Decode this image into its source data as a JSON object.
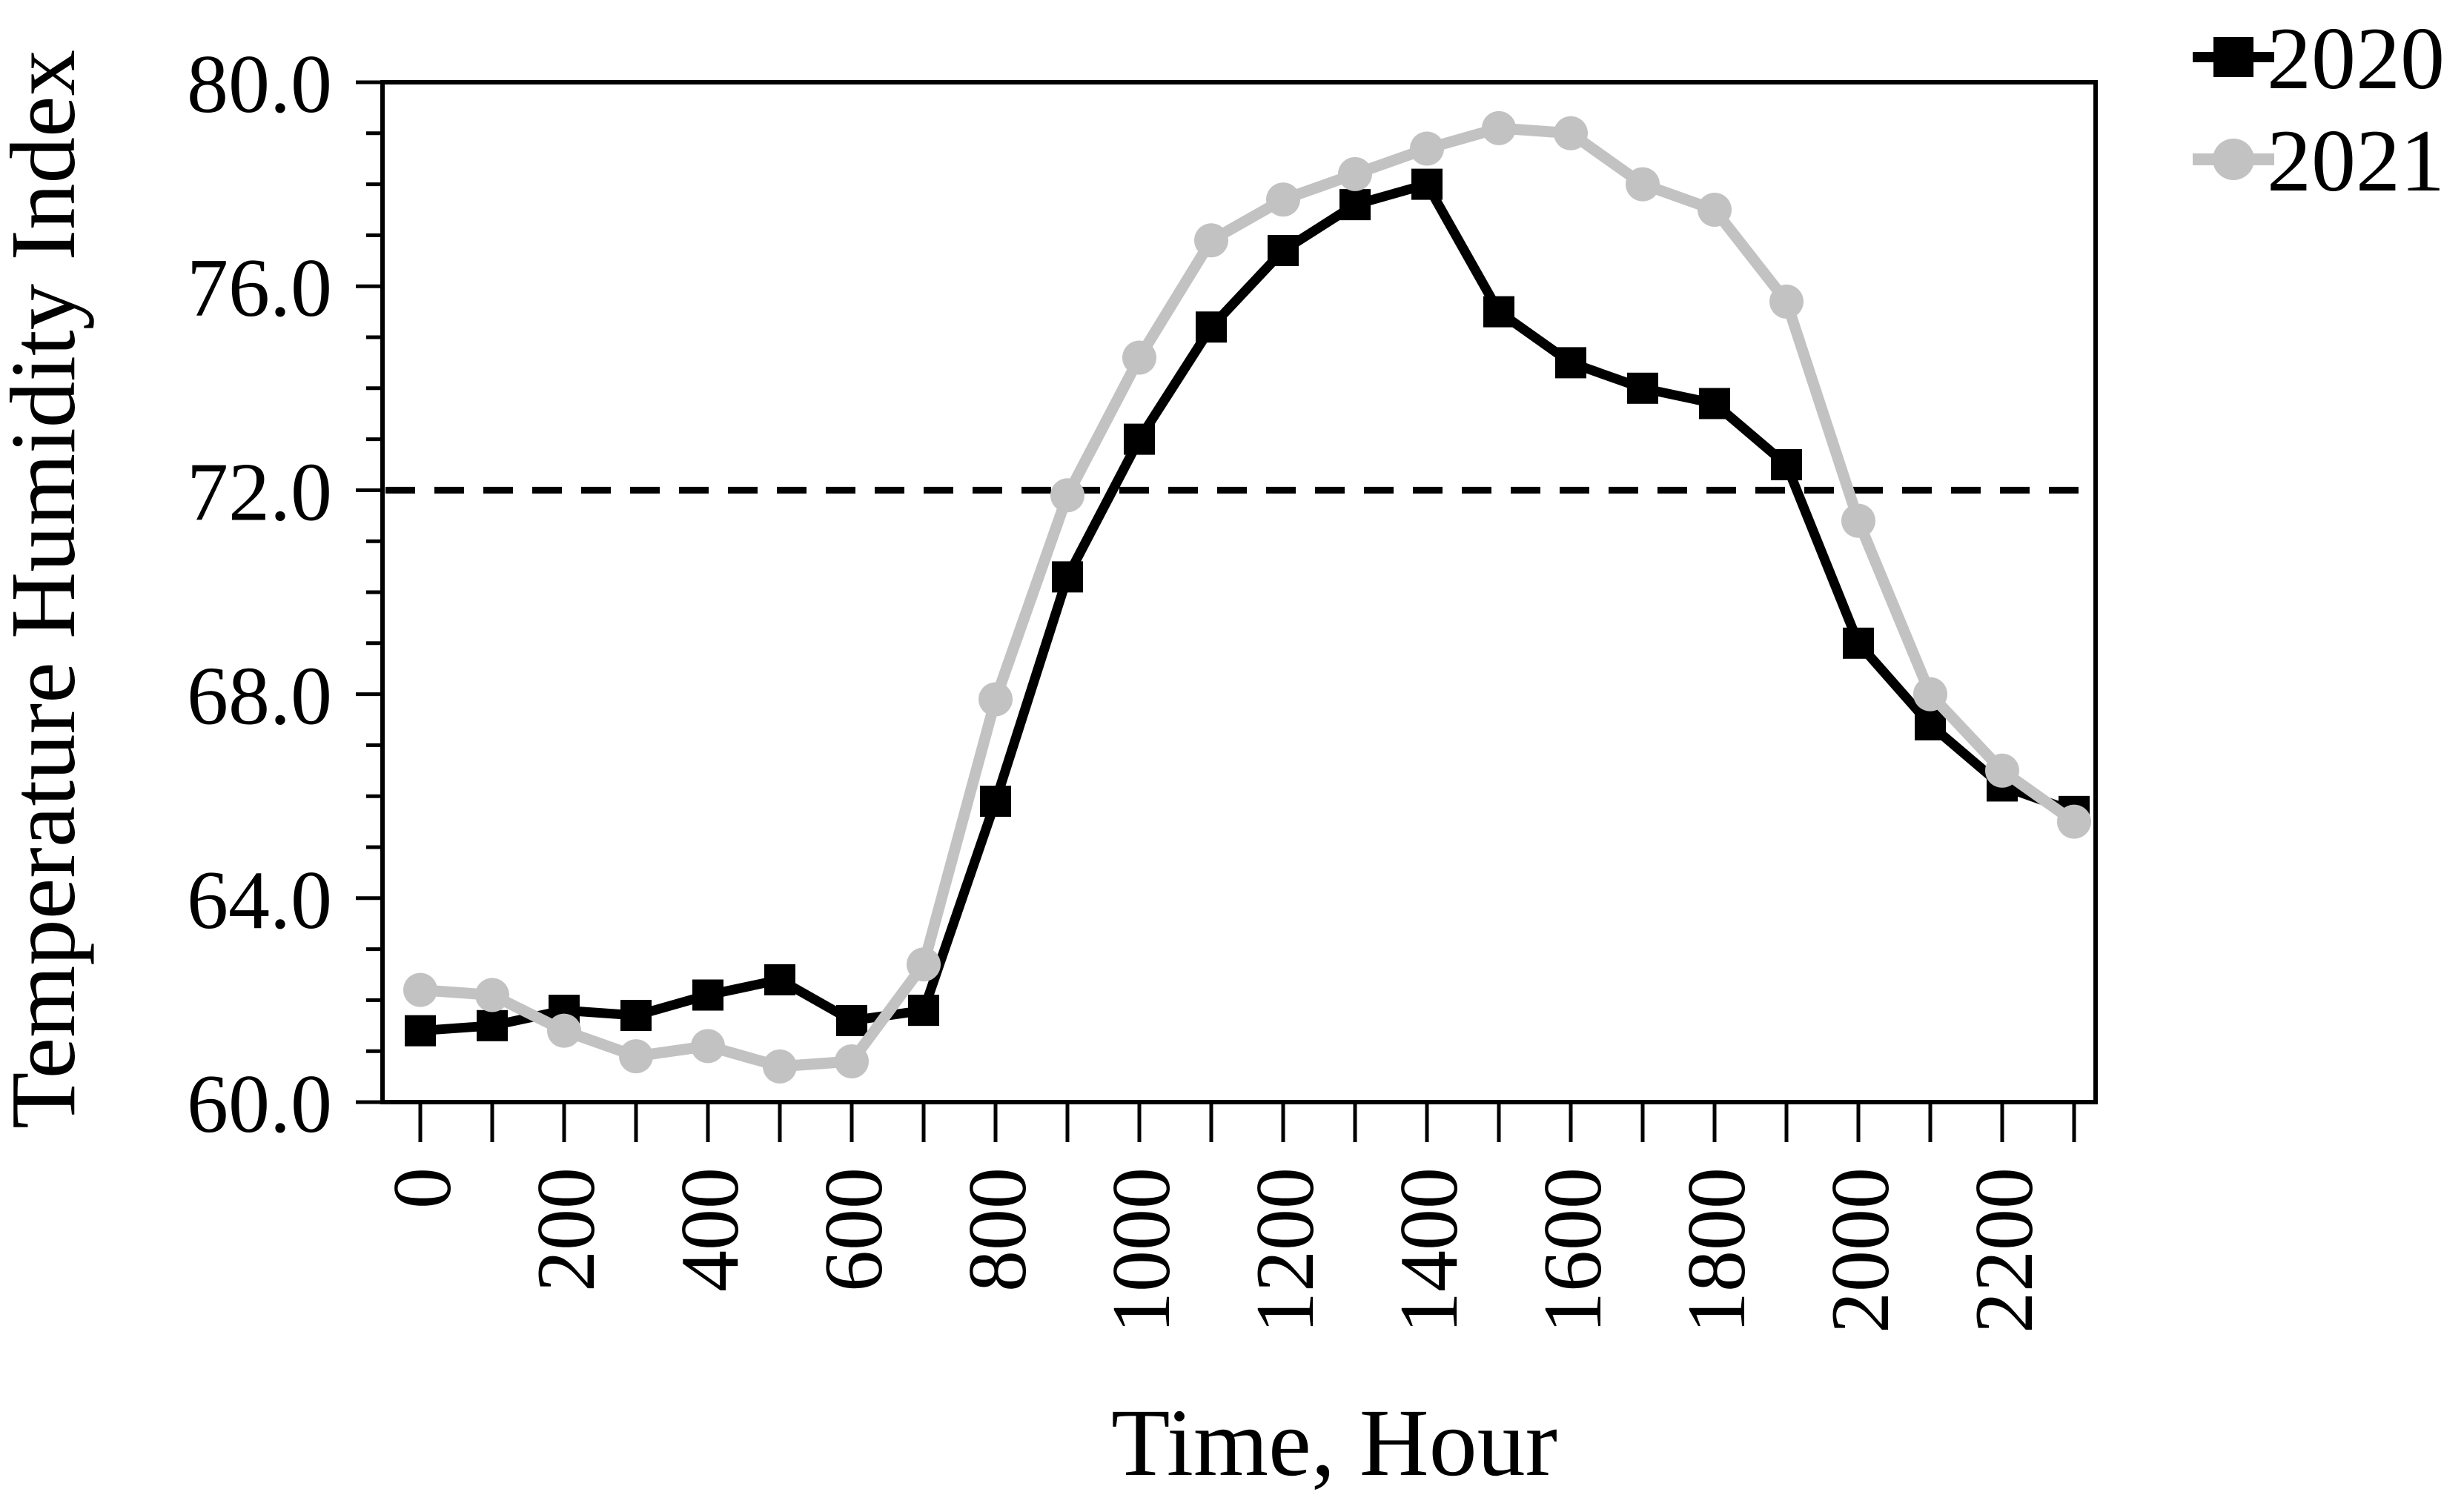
{
  "chart_data": {
    "type": "line",
    "title": "",
    "xlabel": "Time, Hour",
    "ylabel": "Temperature Humidity Index",
    "x": [
      0,
      100,
      200,
      300,
      400,
      500,
      600,
      700,
      800,
      900,
      1000,
      1100,
      1200,
      1300,
      1400,
      1500,
      1600,
      1700,
      1800,
      1900,
      2000,
      2100,
      2200,
      2300
    ],
    "series": [
      {
        "name": "2020",
        "marker": "square",
        "color": "#000000",
        "values": [
          61.4,
          61.5,
          61.8,
          61.7,
          62.1,
          62.4,
          61.6,
          61.8,
          65.9,
          70.3,
          73.0,
          75.2,
          76.7,
          77.6,
          78.0,
          75.5,
          74.5,
          74.0,
          73.7,
          72.5,
          69.0,
          67.4,
          66.2,
          65.7
        ]
      },
      {
        "name": "2021",
        "marker": "circle",
        "color": "#c2c2c2",
        "values": [
          62.2,
          62.1,
          61.4,
          60.9,
          61.1,
          60.7,
          60.8,
          62.7,
          67.9,
          71.9,
          74.6,
          76.9,
          77.7,
          78.2,
          78.7,
          79.1,
          79.0,
          78.0,
          77.5,
          75.7,
          71.4,
          68.0,
          66.5,
          65.5
        ]
      }
    ],
    "reference_line": {
      "value": 72.0,
      "style": "dashed",
      "color": "#000000"
    },
    "y_axis": {
      "min": 60,
      "max": 80,
      "minor_step": 1,
      "major_ticks": [
        {
          "value": 60,
          "label": "60.0"
        },
        {
          "value": 64,
          "label": "64.0"
        },
        {
          "value": 68,
          "label": "68.0"
        },
        {
          "value": 72,
          "label": "72.0"
        },
        {
          "value": 76,
          "label": "76.0"
        },
        {
          "value": 80,
          "label": "80.0"
        }
      ]
    },
    "x_axis": {
      "min": 0,
      "max": 2300,
      "tick_step": 100,
      "labeled_ticks": [
        {
          "value": 0,
          "label": "0"
        },
        {
          "value": 200,
          "label": "200"
        },
        {
          "value": 400,
          "label": "400"
        },
        {
          "value": 600,
          "label": "600"
        },
        {
          "value": 800,
          "label": "800"
        },
        {
          "value": 1000,
          "label": "1000"
        },
        {
          "value": 1200,
          "label": "1200"
        },
        {
          "value": 1400,
          "label": "1400"
        },
        {
          "value": 1600,
          "label": "1600"
        },
        {
          "value": 1800,
          "label": "1800"
        },
        {
          "value": 2000,
          "label": "2000"
        },
        {
          "value": 2200,
          "label": "2200"
        }
      ]
    },
    "legend": {
      "position": "top-right",
      "entries": [
        "2020",
        "2021"
      ]
    },
    "grid": false,
    "background": "#ffffff"
  }
}
